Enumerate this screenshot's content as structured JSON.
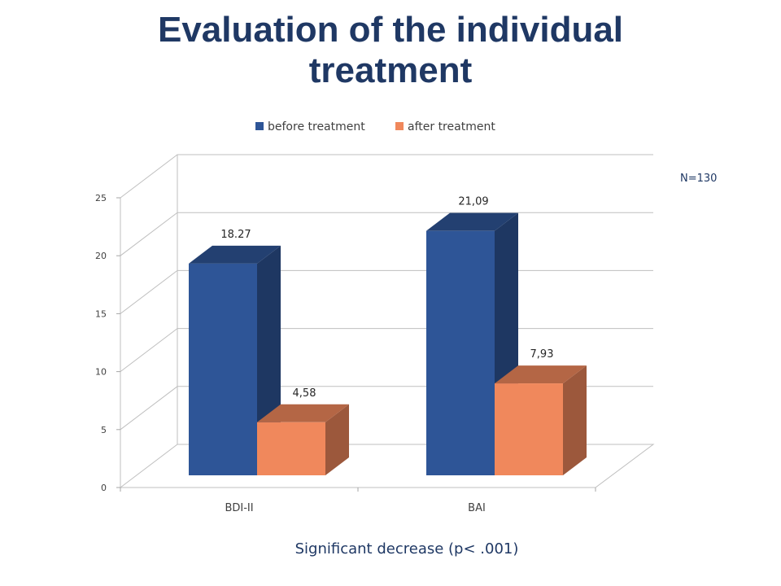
{
  "chart_data": {
    "type": "bar",
    "title": "Evaluation of the individual treatment",
    "title_lines": [
      "Evaluation of the individual",
      "treatment"
    ],
    "categories": [
      "BDI-II",
      "BAI"
    ],
    "series": [
      {
        "name": "before treatment",
        "values": [
          18.27,
          21.09
        ],
        "labels": [
          "18.27",
          "21,09"
        ],
        "color": "#2e5597"
      },
      {
        "name": "after treatment",
        "values": [
          4.58,
          7.93
        ],
        "labels": [
          "4,58",
          "7,93"
        ],
        "color": "#f0885c"
      }
    ],
    "ylim": [
      0,
      25
    ],
    "yticks": [
      0,
      5,
      10,
      15,
      20,
      25
    ],
    "grid": true,
    "legend": "top",
    "annotation": "N=130",
    "note": "Significant decrease (p< .001)"
  }
}
